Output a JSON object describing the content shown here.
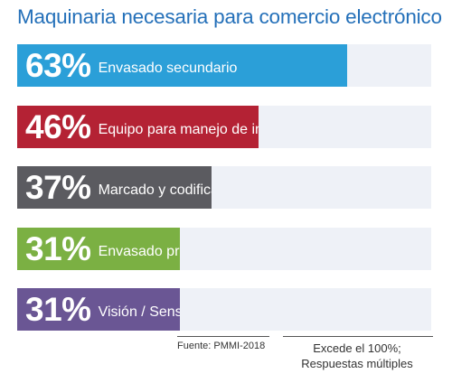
{
  "chart_data": {
    "type": "bar",
    "orientation": "horizontal",
    "title": "Maquinaria necesaria para comercio electrónico",
    "categories": [
      "Envasado secundario",
      "Equipo para manejo de inventario",
      "Marcado y codificación",
      "Envasado primario",
      "Visión / Sensores"
    ],
    "value_labels": [
      "63%",
      "46%",
      "37%",
      "31%",
      "31%"
    ],
    "values": [
      63,
      46,
      37,
      31,
      31
    ],
    "xlim": [
      0,
      79
    ],
    "colors": [
      "#2b9fd8",
      "#b42234",
      "#5b5b60",
      "#7bb043",
      "#6a5694"
    ],
    "track_color": "#eef1f7",
    "grid": false
  },
  "footer": {
    "source": "Fuente: PMMI-2018",
    "note_line1": "Excede el 100%;",
    "note_line2": "Respuestas múltiples"
  }
}
